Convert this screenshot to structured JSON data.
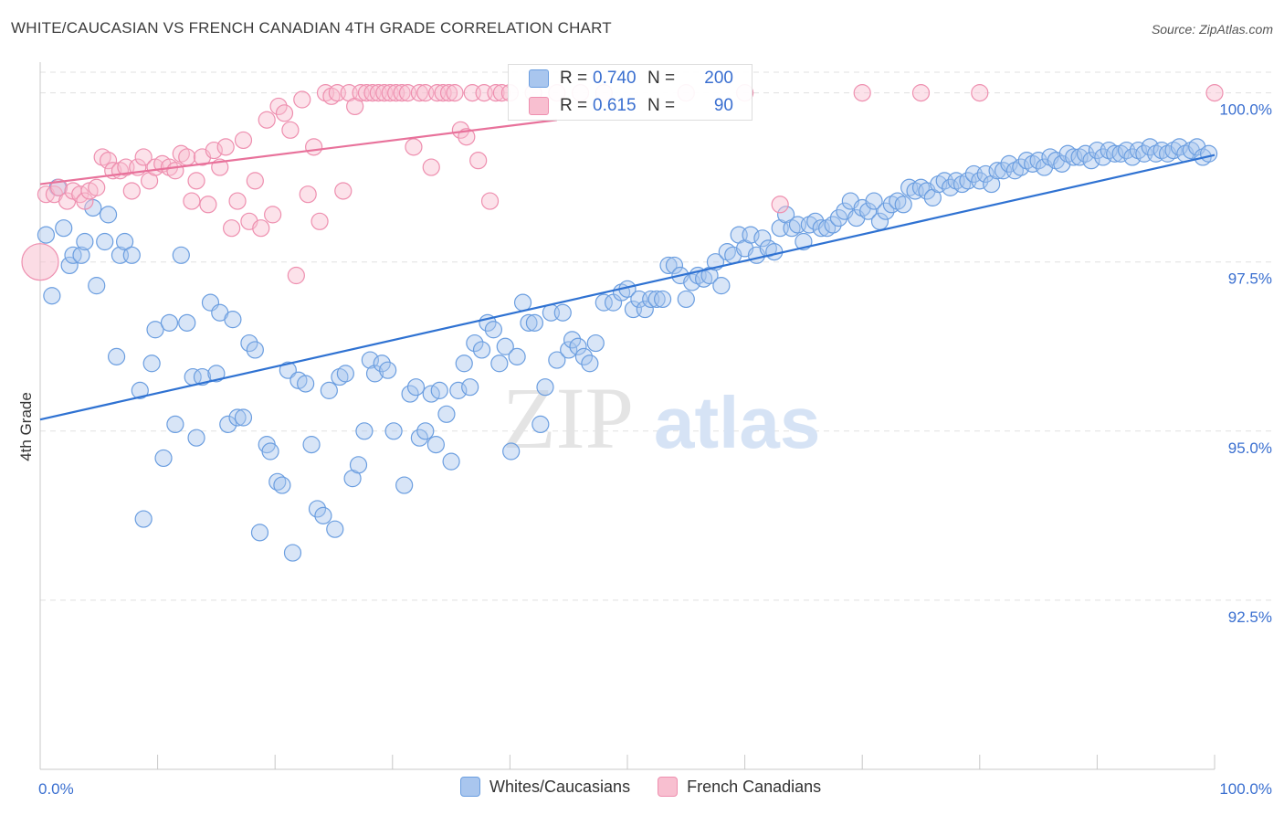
{
  "title": "WHITE/CAUCASIAN VS FRENCH CANADIAN 4TH GRADE CORRELATION CHART",
  "source": "Source: ZipAtlas.com",
  "watermark": {
    "zip": "ZIP",
    "atlas": "atlas"
  },
  "stats": [
    {
      "r_label": "R =",
      "r_value": "0.740",
      "n_label": "N =",
      "n_value": "200"
    },
    {
      "r_label": "R =",
      "r_value": "0.615",
      "n_label": "N =",
      "n_value": "90"
    }
  ],
  "legend": [
    {
      "label": "Whites/Caucasians"
    },
    {
      "label": "French Canadians"
    }
  ],
  "colors": {
    "blue_fill": "#a9c6ee",
    "blue_stroke": "#6b9ee0",
    "blue_line": "#2f72d2",
    "pink_fill": "#f8bfd0",
    "pink_stroke": "#ee8faf",
    "pink_line": "#e8729b",
    "grid": "#e0e0e0",
    "tick_label": "#3a6fd0"
  },
  "chart_data": {
    "type": "scatter",
    "title": "WHITE/CAUCASIAN VS FRENCH CANADIAN 4TH GRADE CORRELATION CHART",
    "xlabel": "",
    "ylabel": "4th Grade",
    "xlim": [
      0,
      100
    ],
    "ylim": [
      90.0,
      100.4
    ],
    "x_tick_labels": [
      "0.0%",
      "100.0%"
    ],
    "y_ticks": [
      92.5,
      95.0,
      97.5,
      100.0
    ],
    "y_tick_labels": [
      "92.5%",
      "95.0%",
      "97.5%",
      "100.0%"
    ],
    "series": [
      {
        "name": "Whites/Caucasians",
        "r": 0.74,
        "n": 200,
        "trend": {
          "x0": 0,
          "y0": 95.17,
          "x1": 100,
          "y1": 99.08
        },
        "points": [
          [
            0.5,
            97.9
          ],
          [
            1,
            97.0
          ],
          [
            1.5,
            98.6
          ],
          [
            2,
            98.0
          ],
          [
            2.5,
            97.45
          ],
          [
            2.8,
            97.6
          ],
          [
            3.5,
            97.6
          ],
          [
            3.8,
            97.8
          ],
          [
            4.5,
            98.3
          ],
          [
            4.8,
            97.15
          ],
          [
            5.5,
            97.8
          ],
          [
            5.8,
            98.2
          ],
          [
            6.5,
            96.1
          ],
          [
            6.8,
            97.6
          ],
          [
            7.2,
            97.8
          ],
          [
            7.8,
            97.6
          ],
          [
            8.5,
            95.6
          ],
          [
            8.8,
            93.7
          ],
          [
            9.5,
            96.0
          ],
          [
            9.8,
            96.5
          ],
          [
            10.5,
            94.6
          ],
          [
            11,
            96.6
          ],
          [
            11.5,
            95.1
          ],
          [
            12,
            97.6
          ],
          [
            12.5,
            96.6
          ],
          [
            13,
            95.8
          ],
          [
            13.3,
            94.9
          ],
          [
            13.8,
            95.8
          ],
          [
            14.5,
            96.9
          ],
          [
            15,
            95.85
          ],
          [
            15.3,
            96.75
          ],
          [
            16,
            95.1
          ],
          [
            16.4,
            96.65
          ],
          [
            16.8,
            95.2
          ],
          [
            17.3,
            95.2
          ],
          [
            17.8,
            96.3
          ],
          [
            18.3,
            96.2
          ],
          [
            18.7,
            93.5
          ],
          [
            19.3,
            94.8
          ],
          [
            19.6,
            94.7
          ],
          [
            20.2,
            94.25
          ],
          [
            20.6,
            94.2
          ],
          [
            21.1,
            95.9
          ],
          [
            21.5,
            93.2
          ],
          [
            22,
            95.75
          ],
          [
            22.6,
            95.7
          ],
          [
            23.1,
            94.8
          ],
          [
            23.6,
            93.85
          ],
          [
            24.1,
            93.75
          ],
          [
            24.6,
            95.6
          ],
          [
            25.1,
            93.55
          ],
          [
            25.5,
            95.8
          ],
          [
            26,
            95.85
          ],
          [
            26.6,
            94.3
          ],
          [
            27.1,
            94.5
          ],
          [
            27.6,
            95.0
          ],
          [
            28.1,
            96.05
          ],
          [
            28.5,
            95.85
          ],
          [
            29.1,
            96.0
          ],
          [
            29.6,
            95.9
          ],
          [
            30.1,
            95.0
          ],
          [
            31,
            94.2
          ],
          [
            31.5,
            95.55
          ],
          [
            32,
            95.65
          ],
          [
            32.3,
            94.9
          ],
          [
            32.8,
            95.0
          ],
          [
            33.3,
            95.55
          ],
          [
            33.7,
            94.8
          ],
          [
            34,
            95.6
          ],
          [
            34.6,
            95.25
          ],
          [
            35,
            94.55
          ],
          [
            35.6,
            95.6
          ],
          [
            36.1,
            96.0
          ],
          [
            36.6,
            95.65
          ],
          [
            37,
            96.3
          ],
          [
            37.6,
            96.2
          ],
          [
            38.1,
            96.6
          ],
          [
            38.6,
            96.5
          ],
          [
            39.1,
            96.0
          ],
          [
            39.6,
            96.25
          ],
          [
            40.1,
            94.7
          ],
          [
            40.6,
            96.1
          ],
          [
            41.1,
            96.9
          ],
          [
            41.6,
            96.6
          ],
          [
            42.1,
            96.6
          ],
          [
            42.6,
            95.1
          ],
          [
            43,
            95.65
          ],
          [
            43.5,
            96.75
          ],
          [
            44,
            96.05
          ],
          [
            44.5,
            96.75
          ],
          [
            45,
            96.2
          ],
          [
            45.3,
            96.35
          ],
          [
            45.8,
            96.25
          ],
          [
            46.3,
            96.1
          ],
          [
            46.8,
            96.0
          ],
          [
            47.3,
            96.3
          ],
          [
            48,
            96.9
          ],
          [
            48.8,
            96.9
          ],
          [
            49.5,
            97.05
          ],
          [
            50,
            97.1
          ],
          [
            50.5,
            96.8
          ],
          [
            51,
            96.95
          ],
          [
            51.5,
            96.8
          ],
          [
            52,
            96.95
          ],
          [
            52.5,
            96.95
          ],
          [
            53,
            96.95
          ],
          [
            53.5,
            97.45
          ],
          [
            54,
            97.45
          ],
          [
            54.5,
            97.3
          ],
          [
            55,
            96.95
          ],
          [
            55.5,
            97.2
          ],
          [
            56,
            97.3
          ],
          [
            56.5,
            97.25
          ],
          [
            57,
            97.3
          ],
          [
            57.5,
            97.5
          ],
          [
            58,
            97.15
          ],
          [
            58.5,
            97.65
          ],
          [
            59,
            97.6
          ],
          [
            59.5,
            97.9
          ],
          [
            60,
            97.7
          ],
          [
            60.5,
            97.9
          ],
          [
            61,
            97.6
          ],
          [
            61.5,
            97.85
          ],
          [
            62,
            97.7
          ],
          [
            62.5,
            97.65
          ],
          [
            63,
            98.0
          ],
          [
            63.5,
            98.2
          ],
          [
            64,
            98.0
          ],
          [
            64.5,
            98.05
          ],
          [
            65,
            97.8
          ],
          [
            65.5,
            98.05
          ],
          [
            66,
            98.1
          ],
          [
            66.5,
            98.0
          ],
          [
            67,
            98.0
          ],
          [
            67.5,
            98.05
          ],
          [
            68,
            98.15
          ],
          [
            68.5,
            98.25
          ],
          [
            69,
            98.4
          ],
          [
            69.5,
            98.15
          ],
          [
            70,
            98.3
          ],
          [
            70.5,
            98.25
          ],
          [
            71,
            98.4
          ],
          [
            71.5,
            98.1
          ],
          [
            72,
            98.25
          ],
          [
            72.5,
            98.35
          ],
          [
            73,
            98.4
          ],
          [
            73.5,
            98.35
          ],
          [
            74,
            98.6
          ],
          [
            74.5,
            98.55
          ],
          [
            75,
            98.6
          ],
          [
            75.5,
            98.55
          ],
          [
            76,
            98.45
          ],
          [
            76.5,
            98.65
          ],
          [
            77,
            98.7
          ],
          [
            77.5,
            98.6
          ],
          [
            78,
            98.7
          ],
          [
            78.5,
            98.65
          ],
          [
            79,
            98.7
          ],
          [
            79.5,
            98.8
          ],
          [
            80,
            98.7
          ],
          [
            80.5,
            98.8
          ],
          [
            81,
            98.65
          ],
          [
            81.5,
            98.85
          ],
          [
            82,
            98.85
          ],
          [
            82.5,
            98.95
          ],
          [
            83,
            98.85
          ],
          [
            83.5,
            98.9
          ],
          [
            84,
            99.0
          ],
          [
            84.5,
            98.95
          ],
          [
            85,
            99.0
          ],
          [
            85.5,
            98.9
          ],
          [
            86,
            99.05
          ],
          [
            86.5,
            99.0
          ],
          [
            87,
            98.95
          ],
          [
            87.5,
            99.1
          ],
          [
            88,
            99.05
          ],
          [
            88.5,
            99.05
          ],
          [
            89,
            99.1
          ],
          [
            89.5,
            99.0
          ],
          [
            90,
            99.15
          ],
          [
            90.5,
            99.05
          ],
          [
            91,
            99.15
          ],
          [
            91.5,
            99.1
          ],
          [
            92,
            99.1
          ],
          [
            92.5,
            99.15
          ],
          [
            93,
            99.05
          ],
          [
            93.5,
            99.15
          ],
          [
            94,
            99.1
          ],
          [
            94.5,
            99.2
          ],
          [
            95,
            99.1
          ],
          [
            95.5,
            99.15
          ],
          [
            96,
            99.1
          ],
          [
            96.5,
            99.15
          ],
          [
            97,
            99.2
          ],
          [
            97.5,
            99.1
          ],
          [
            98,
            99.15
          ],
          [
            98.5,
            99.2
          ],
          [
            99,
            99.05
          ],
          [
            99.5,
            99.1
          ]
        ]
      },
      {
        "name": "French Canadians",
        "r": 0.615,
        "n": 90,
        "trend": {
          "x0": 0,
          "y0": 98.65,
          "x1": 44,
          "y1": 99.6
        },
        "points": [
          [
            0.5,
            98.5
          ],
          [
            1.2,
            98.5
          ],
          [
            1.6,
            98.6
          ],
          [
            2.3,
            98.4
          ],
          [
            2.8,
            98.55
          ],
          [
            3.4,
            98.5
          ],
          [
            3.8,
            98.4
          ],
          [
            4.2,
            98.55
          ],
          [
            4.8,
            98.6
          ],
          [
            5.3,
            99.05
          ],
          [
            5.8,
            99.0
          ],
          [
            6.2,
            98.85
          ],
          [
            6.8,
            98.85
          ],
          [
            7.3,
            98.9
          ],
          [
            7.8,
            98.55
          ],
          [
            8.3,
            98.9
          ],
          [
            8.8,
            99.05
          ],
          [
            9.3,
            98.7
          ],
          [
            9.8,
            98.9
          ],
          [
            10.4,
            98.95
          ],
          [
            11,
            98.9
          ],
          [
            11.5,
            98.85
          ],
          [
            12,
            99.1
          ],
          [
            12.5,
            99.05
          ],
          [
            12.9,
            98.4
          ],
          [
            13.3,
            98.7
          ],
          [
            13.8,
            99.05
          ],
          [
            14.3,
            98.35
          ],
          [
            14.8,
            99.15
          ],
          [
            15.3,
            98.9
          ],
          [
            15.8,
            99.2
          ],
          [
            16.3,
            98.0
          ],
          [
            16.8,
            98.4
          ],
          [
            17.3,
            99.3
          ],
          [
            17.8,
            98.1
          ],
          [
            18.3,
            98.7
          ],
          [
            18.8,
            98.0
          ],
          [
            19.3,
            99.6
          ],
          [
            19.8,
            98.2
          ],
          [
            20.3,
            99.8
          ],
          [
            20.8,
            99.7
          ],
          [
            21.3,
            99.45
          ],
          [
            21.8,
            97.3
          ],
          [
            22.3,
            99.9
          ],
          [
            22.8,
            98.5
          ],
          [
            23.3,
            99.2
          ],
          [
            23.8,
            98.1
          ],
          [
            24.3,
            100.0
          ],
          [
            24.8,
            99.95
          ],
          [
            25.3,
            100.0
          ],
          [
            25.8,
            98.55
          ],
          [
            26.3,
            100.0
          ],
          [
            26.8,
            99.8
          ],
          [
            27.3,
            100.0
          ],
          [
            27.8,
            100.0
          ],
          [
            28.3,
            100.0
          ],
          [
            28.8,
            100.0
          ],
          [
            29.3,
            100.0
          ],
          [
            29.8,
            100.0
          ],
          [
            30.3,
            100.0
          ],
          [
            30.8,
            100.0
          ],
          [
            31.3,
            100.0
          ],
          [
            31.8,
            99.2
          ],
          [
            32.3,
            100.0
          ],
          [
            32.8,
            100.0
          ],
          [
            33.3,
            98.9
          ],
          [
            33.8,
            100.0
          ],
          [
            34.3,
            100.0
          ],
          [
            34.8,
            100.0
          ],
          [
            35.3,
            100.0
          ],
          [
            35.8,
            99.45
          ],
          [
            36.3,
            99.35
          ],
          [
            36.8,
            100.0
          ],
          [
            37.3,
            99.0
          ],
          [
            37.8,
            100.0
          ],
          [
            38.3,
            98.4
          ],
          [
            38.8,
            100.0
          ],
          [
            39.3,
            100.0
          ],
          [
            40,
            100.0
          ],
          [
            42,
            100.0
          ],
          [
            44,
            100.0
          ],
          [
            46,
            100.0
          ],
          [
            48,
            100.0
          ],
          [
            55,
            100.0
          ],
          [
            60,
            100.0
          ],
          [
            63,
            98.35
          ],
          [
            70,
            100.0
          ],
          [
            75,
            100.0
          ],
          [
            80,
            100.0
          ],
          [
            100,
            100.0
          ]
        ]
      }
    ]
  }
}
